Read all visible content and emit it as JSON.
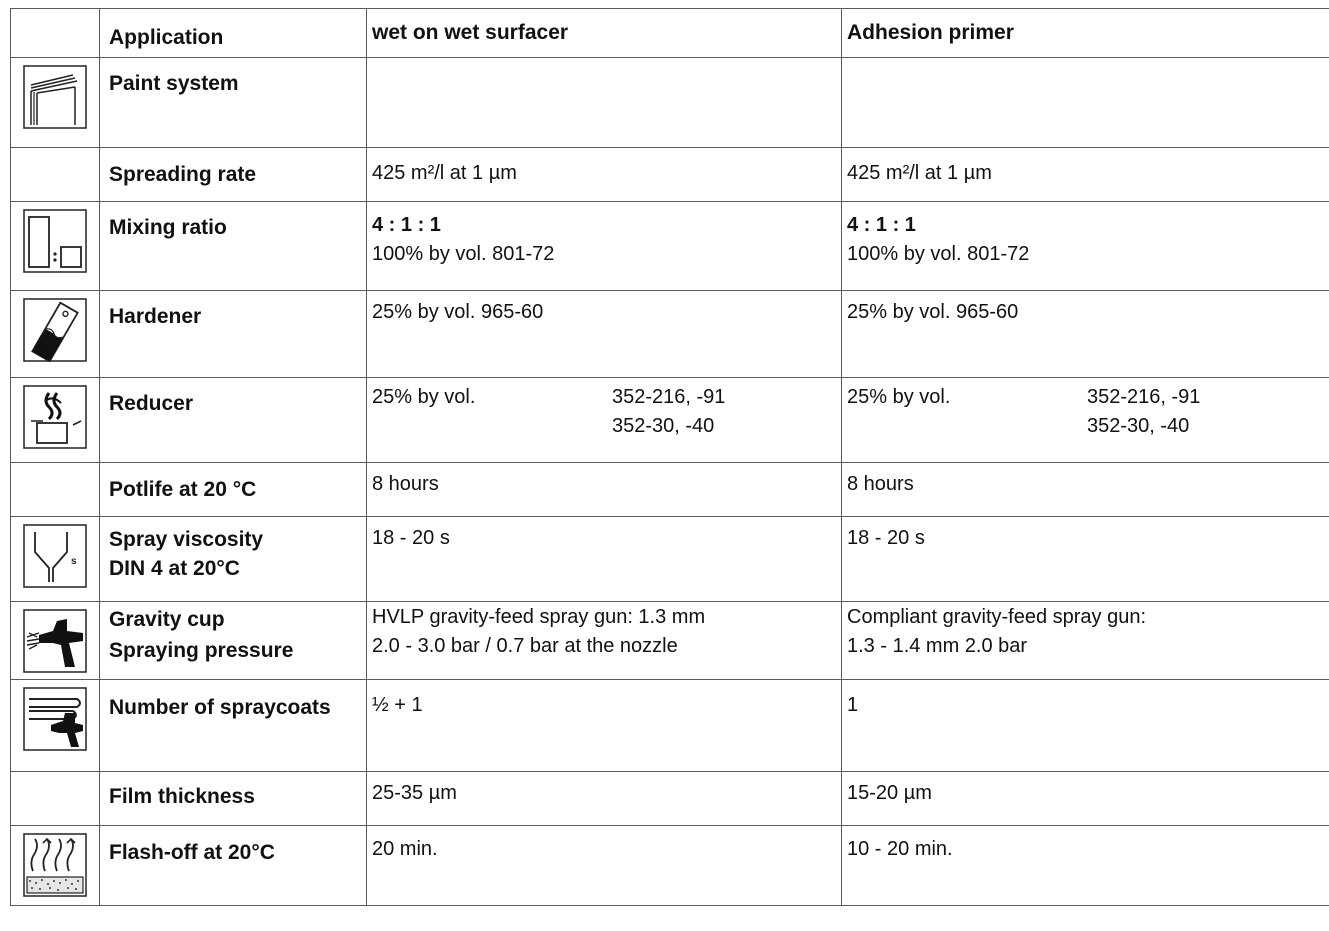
{
  "header": {
    "application": "Application",
    "col1": "wet on wet surfacer",
    "col2": "Adhesion primer"
  },
  "rows": {
    "paint_system": {
      "label": "Paint system",
      "col1": "",
      "col2": "",
      "icon": "paint-system-icon"
    },
    "spreading_rate": {
      "label": "Spreading rate",
      "col1": "425 m²/l at 1 µm",
      "col2": "425 m²/l at 1 µm"
    },
    "mixing_ratio": {
      "label": "Mixing ratio",
      "col1_ratio": "4 : 1 : 1",
      "col1_detail": "100% by vol. 801-72",
      "col2_ratio": "4 : 1 : 1",
      "col2_detail": "100% by vol. 801-72",
      "icon": "mixing-ratio-icon"
    },
    "hardener": {
      "label": "Hardener",
      "col1": "25% by vol. 965-60",
      "col2": "25% by vol. 965-60",
      "icon": "hardener-icon"
    },
    "reducer": {
      "label": "Reducer",
      "col1_a": "25% by vol.",
      "col1_b1": "352-216, -91",
      "col1_b2": "352-30, -40",
      "col2_a": "25% by vol.",
      "col2_b1": "352-216, -91",
      "col2_b2": "352-30, -40",
      "icon": "reducer-icon"
    },
    "potlife": {
      "label": "Potlife at 20 °C",
      "col1": "8 hours",
      "col2": "8 hours"
    },
    "spray_viscosity": {
      "label1": "Spray viscosity",
      "label2": "DIN 4 at 20°C",
      "col1": "18 - 20 s",
      "col2": "18 - 20 s",
      "icon": "viscosity-cup-icon"
    },
    "gravity_cup": {
      "label1": "Gravity cup",
      "label2": "Spraying pressure",
      "col1_line1": "HVLP gravity-feed spray gun: 1.3 mm",
      "col1_line2": "2.0 - 3.0 bar / 0.7 bar at the nozzle",
      "col2_line1": "Compliant gravity-feed spray gun:",
      "col2_line2": "1.3 - 1.4 mm 2.0 bar",
      "icon": "spray-gun-icon"
    },
    "spraycoats": {
      "label": "Number of spraycoats",
      "col1": "½ + 1",
      "col2": "1",
      "icon": "spraycoats-icon"
    },
    "film_thickness": {
      "label": "Film thickness",
      "col1": "25-35 µm",
      "col2": "15-20 µm"
    },
    "flash_off": {
      "label": "Flash-off at 20°C",
      "col1": "20 min.",
      "col2": "10 - 20 min.",
      "icon": "flash-off-icon"
    }
  }
}
